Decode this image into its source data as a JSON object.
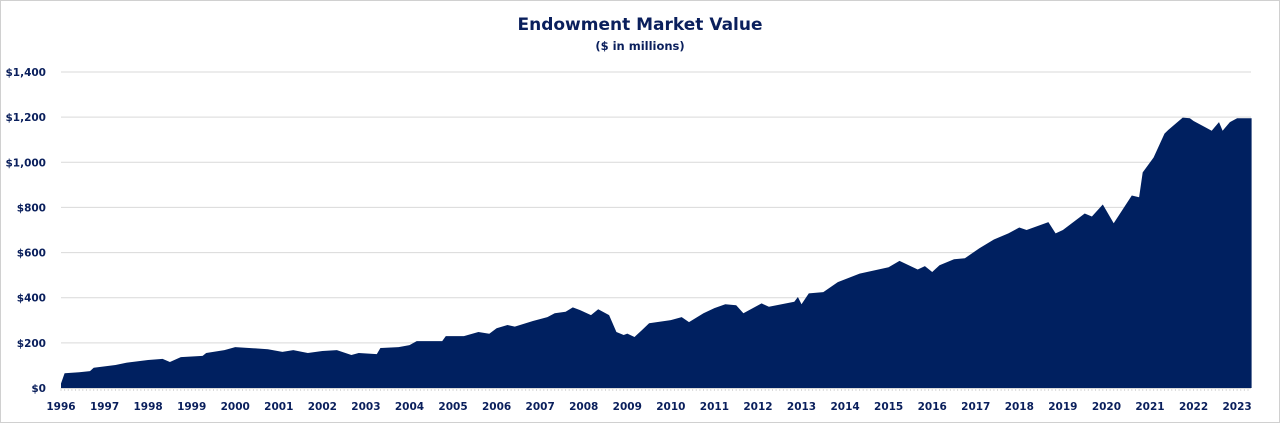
{
  "chart_data": {
    "type": "area",
    "title": "Endowment Market Value",
    "subtitle": "($ in millions)",
    "xlabel": "",
    "ylabel": "",
    "ylim": [
      0,
      1400
    ],
    "grid": true,
    "color": "#002060",
    "y_ticks": [
      "$0",
      "$200",
      "$400",
      "$600",
      "$800",
      "$1,000",
      "$1,200",
      "$1,400"
    ],
    "y_tick_values": [
      0,
      200,
      400,
      600,
      800,
      1000,
      1200,
      1400
    ],
    "x_ticks": [
      "1996",
      "1997",
      "1998",
      "1999",
      "2000",
      "2001",
      "2002",
      "2003",
      "2004",
      "2005",
      "2006",
      "2007",
      "2008",
      "2009",
      "2010",
      "2011",
      "2012",
      "2013",
      "2014",
      "2015",
      "2016",
      "2017",
      "2018",
      "2019",
      "2020",
      "2021",
      "2022",
      "2023"
    ],
    "series": [
      {
        "points": [
          [
            "1996-01",
            20
          ],
          [
            "1996-02",
            65
          ],
          [
            "1996-06",
            70
          ],
          [
            "1996-09",
            75
          ],
          [
            "1996-10",
            90
          ],
          [
            "1997-04",
            102
          ],
          [
            "1997-07",
            112
          ],
          [
            "1998-01",
            124
          ],
          [
            "1998-05",
            129
          ],
          [
            "1998-07",
            115
          ],
          [
            "1998-10",
            137
          ],
          [
            "1999-04",
            142
          ],
          [
            "1999-05",
            155
          ],
          [
            "1999-10",
            168
          ],
          [
            "2000-01",
            181
          ],
          [
            "2000-10",
            172
          ],
          [
            "2001-02",
            160
          ],
          [
            "2001-05",
            168
          ],
          [
            "2001-09",
            155
          ],
          [
            "2002-01",
            164
          ],
          [
            "2002-05",
            168
          ],
          [
            "2002-09",
            146
          ],
          [
            "2002-11",
            155
          ],
          [
            "2003-04",
            150
          ],
          [
            "2003-05",
            177
          ],
          [
            "2003-10",
            181
          ],
          [
            "2004-01",
            190
          ],
          [
            "2004-03",
            208
          ],
          [
            "2004-10",
            208
          ],
          [
            "2004-11",
            230
          ],
          [
            "2005-04",
            230
          ],
          [
            "2005-08",
            248
          ],
          [
            "2005-11",
            240
          ],
          [
            "2006-01",
            265
          ],
          [
            "2006-04",
            279
          ],
          [
            "2006-06",
            272
          ],
          [
            "2006-11",
            297
          ],
          [
            "2007-03",
            314
          ],
          [
            "2007-05",
            331
          ],
          [
            "2007-08",
            338
          ],
          [
            "2007-10",
            357
          ],
          [
            "2007-12",
            345
          ],
          [
            "2008-03",
            323
          ],
          [
            "2008-05",
            349
          ],
          [
            "2008-08",
            323
          ],
          [
            "2008-10",
            248
          ],
          [
            "2008-12",
            235
          ],
          [
            "2009-01",
            241
          ],
          [
            "2009-03",
            226
          ],
          [
            "2009-05",
            256
          ],
          [
            "2009-07",
            287
          ],
          [
            "2010-01",
            301
          ],
          [
            "2010-04",
            314
          ],
          [
            "2010-06",
            292
          ],
          [
            "2010-10",
            331
          ],
          [
            "2011-01",
            354
          ],
          [
            "2011-04",
            371
          ],
          [
            "2011-07",
            367
          ],
          [
            "2011-09",
            331
          ],
          [
            "2012-02",
            375
          ],
          [
            "2012-04",
            360
          ],
          [
            "2012-11",
            382
          ],
          [
            "2012-12",
            403
          ],
          [
            "2013-01",
            371
          ],
          [
            "2013-03",
            419
          ],
          [
            "2013-07",
            425
          ],
          [
            "2013-11",
            469
          ],
          [
            "2014-05",
            507
          ],
          [
            "2015-01",
            535
          ],
          [
            "2015-04",
            563
          ],
          [
            "2015-09",
            525
          ],
          [
            "2015-11",
            540
          ],
          [
            "2016-01",
            514
          ],
          [
            "2016-03",
            544
          ],
          [
            "2016-07",
            570
          ],
          [
            "2016-10",
            575
          ],
          [
            "2017-02",
            619
          ],
          [
            "2017-06",
            658
          ],
          [
            "2017-10",
            685
          ],
          [
            "2018-01",
            711
          ],
          [
            "2018-03",
            700
          ],
          [
            "2018-09",
            735
          ],
          [
            "2018-11",
            685
          ],
          [
            "2019-01",
            700
          ],
          [
            "2019-07",
            773
          ],
          [
            "2019-09",
            760
          ],
          [
            "2019-12",
            813
          ],
          [
            "2020-03",
            730
          ],
          [
            "2020-08",
            853
          ],
          [
            "2020-10",
            845
          ],
          [
            "2020-11",
            955
          ],
          [
            "2021-02",
            1021
          ],
          [
            "2021-05",
            1127
          ],
          [
            "2021-06",
            1143
          ],
          [
            "2021-10",
            1198
          ],
          [
            "2021-12",
            1195
          ],
          [
            "2022-01",
            1183
          ],
          [
            "2022-06",
            1140
          ],
          [
            "2022-08",
            1178
          ],
          [
            "2022-09",
            1140
          ],
          [
            "2022-11",
            1178
          ],
          [
            "2023-01",
            1195
          ],
          [
            "2023-05",
            1195
          ]
        ]
      }
    ]
  }
}
